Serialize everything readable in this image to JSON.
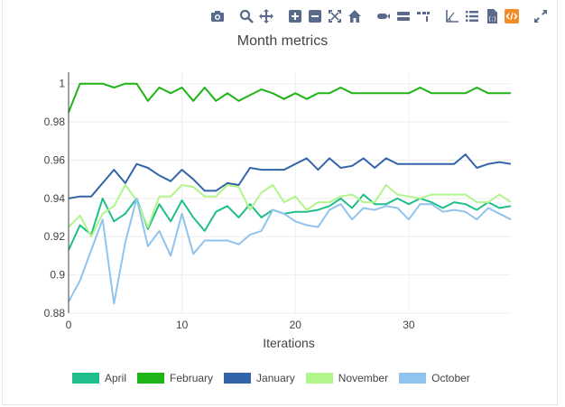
{
  "modebar": {
    "buttons": [
      {
        "name": "camera-icon",
        "group": 0
      },
      {
        "name": "zoom-icon",
        "group": 1
      },
      {
        "name": "pan-icon",
        "group": 1
      },
      {
        "name": "zoom-in-icon",
        "group": 2
      },
      {
        "name": "zoom-out-icon",
        "group": 2
      },
      {
        "name": "autoscale-icon",
        "group": 2
      },
      {
        "name": "home-icon",
        "group": 2
      },
      {
        "name": "spike-lines-icon",
        "group": 3
      },
      {
        "name": "hover-closest-icon",
        "group": 3
      },
      {
        "name": "hover-compare-icon",
        "group": 3
      },
      {
        "name": "toggle-axes-icon",
        "group": 4
      },
      {
        "name": "list-icon",
        "group": 4
      },
      {
        "name": "json-icon",
        "group": 4
      },
      {
        "name": "code-icon",
        "group": 4
      },
      {
        "name": "fullscreen-icon",
        "group": 5
      }
    ],
    "accent": "#f28c28",
    "icon_color": "#5a6a8a"
  },
  "chart_data": {
    "type": "line",
    "title": "Month metrics",
    "xlabel": "Iterations",
    "ylabel": "",
    "xlim": [
      0,
      39
    ],
    "ylim": [
      0.88,
      1.006
    ],
    "xticks": [
      0,
      10,
      20,
      30
    ],
    "yticks": [
      0.88,
      0.9,
      0.92,
      0.94,
      0.96,
      0.98,
      1
    ],
    "ytick_labels": [
      "0.88",
      "0.9",
      "0.92",
      "0.94",
      "0.96",
      "0.98",
      "1"
    ],
    "grid": true,
    "legend_position": "bottom",
    "x": [
      0,
      1,
      2,
      3,
      4,
      5,
      6,
      7,
      8,
      9,
      10,
      11,
      12,
      13,
      14,
      15,
      16,
      17,
      18,
      19,
      20,
      21,
      22,
      23,
      24,
      25,
      26,
      27,
      28,
      29,
      30,
      31,
      32,
      33,
      34,
      35,
      36,
      37,
      38,
      39
    ],
    "series": [
      {
        "name": "April",
        "color": "#1fbe8c",
        "values": [
          0.913,
          0.926,
          0.921,
          0.94,
          0.928,
          0.932,
          0.94,
          0.924,
          0.937,
          0.928,
          0.939,
          0.93,
          0.923,
          0.933,
          0.936,
          0.93,
          0.937,
          0.93,
          0.934,
          0.932,
          0.933,
          0.933,
          0.934,
          0.936,
          0.94,
          0.935,
          0.942,
          0.937,
          0.937,
          0.94,
          0.937,
          0.94,
          0.938,
          0.935,
          0.938,
          0.937,
          0.934,
          0.938,
          0.935,
          0.936
        ]
      },
      {
        "name": "February",
        "color": "#1fb516",
        "values": [
          0.985,
          1.0,
          1.0,
          1.0,
          0.998,
          1.0,
          1.0,
          0.991,
          0.998,
          0.995,
          0.998,
          0.991,
          0.998,
          0.991,
          0.995,
          0.991,
          0.994,
          0.997,
          0.995,
          0.992,
          0.995,
          0.992,
          0.995,
          0.995,
          0.998,
          0.995,
          0.995,
          0.995,
          0.995,
          0.995,
          0.995,
          0.998,
          0.995,
          0.995,
          0.995,
          0.995,
          0.998,
          0.995,
          0.995,
          0.995
        ]
      },
      {
        "name": "January",
        "color": "#3364a9",
        "values": [
          0.94,
          0.941,
          0.941,
          0.948,
          0.955,
          0.948,
          0.958,
          0.956,
          0.952,
          0.949,
          0.955,
          0.95,
          0.944,
          0.944,
          0.948,
          0.947,
          0.956,
          0.955,
          0.955,
          0.955,
          0.958,
          0.961,
          0.955,
          0.961,
          0.956,
          0.957,
          0.961,
          0.956,
          0.961,
          0.958,
          0.958,
          0.958,
          0.958,
          0.958,
          0.958,
          0.963,
          0.956,
          0.958,
          0.959,
          0.958
        ]
      },
      {
        "name": "November",
        "color": "#b2f58a",
        "values": [
          0.925,
          0.931,
          0.92,
          0.932,
          0.936,
          0.947,
          0.939,
          0.925,
          0.941,
          0.941,
          0.947,
          0.946,
          0.941,
          0.941,
          0.947,
          0.946,
          0.934,
          0.943,
          0.947,
          0.938,
          0.941,
          0.934,
          0.938,
          0.938,
          0.941,
          0.942,
          0.938,
          0.938,
          0.947,
          0.942,
          0.941,
          0.94,
          0.942,
          0.942,
          0.942,
          0.942,
          0.938,
          0.938,
          0.942,
          0.938
        ]
      },
      {
        "name": "October",
        "color": "#90c4ee",
        "values": [
          0.886,
          0.897,
          0.913,
          0.929,
          0.885,
          0.917,
          0.94,
          0.915,
          0.923,
          0.91,
          0.932,
          0.911,
          0.918,
          0.918,
          0.918,
          0.916,
          0.921,
          0.923,
          0.934,
          0.932,
          0.928,
          0.926,
          0.925,
          0.934,
          0.937,
          0.929,
          0.935,
          0.934,
          0.936,
          0.935,
          0.929,
          0.937,
          0.937,
          0.933,
          0.934,
          0.933,
          0.929,
          0.935,
          0.932,
          0.929
        ]
      }
    ]
  }
}
